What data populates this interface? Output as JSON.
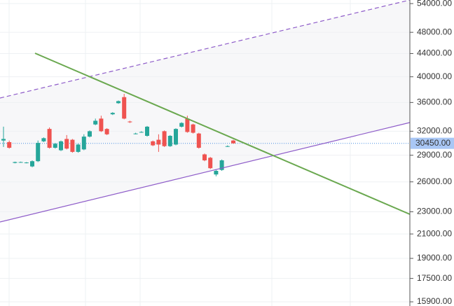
{
  "chart_data": {
    "type": "candlestick",
    "log_scale": true,
    "grid": true,
    "up_color": "#26a69a",
    "down_color": "#ef5350",
    "ylim": [
      15630,
      54800
    ],
    "yticks": [
      {
        "value": 54000,
        "label": "54000.00"
      },
      {
        "value": 48000,
        "label": "48000.00"
      },
      {
        "value": 44000,
        "label": "44000.00"
      },
      {
        "value": 40000,
        "label": "40000.00"
      },
      {
        "value": 36000,
        "label": "36000.00"
      },
      {
        "value": 32000,
        "label": "32000.00"
      },
      {
        "value": 29000,
        "label": "29000.00"
      },
      {
        "value": 26000,
        "label": "26000.00"
      },
      {
        "value": 23000,
        "label": "23000.00"
      },
      {
        "value": 21000,
        "label": "21000.00"
      },
      {
        "value": 19000,
        "label": "19000.00"
      },
      {
        "value": 17500,
        "label": "17500.00"
      },
      {
        "value": 15900,
        "label": "15900.00"
      }
    ],
    "current_price": {
      "value": 30450,
      "label": "30450.00"
    },
    "open": [
      30800,
      30600,
      28100,
      28200,
      28100,
      27700,
      28300,
      30700,
      32300,
      29900,
      29600,
      31000,
      30900,
      29400,
      29700,
      31300,
      32900,
      33700,
      32300,
      34300,
      35900,
      36800,
      33300,
      31700,
      31900,
      31400,
      30700,
      30900,
      32000,
      30100,
      30300,
      32600,
      33700,
      32900,
      31700,
      29100,
      28700,
      26800,
      27300,
      30100,
      30800
    ],
    "high": [
      32600,
      30800,
      28250,
      28250,
      28200,
      28400,
      30800,
      31200,
      32500,
      30500,
      30800,
      31500,
      31000,
      30400,
      31600,
      32100,
      33700,
      34100,
      32400,
      34600,
      36300,
      37300,
      33400,
      31800,
      32000,
      32700,
      30800,
      31600,
      32100,
      31500,
      32400,
      33200,
      34100,
      33000,
      31800,
      29200,
      28800,
      27300,
      28500,
      30200,
      30900
    ],
    "low": [
      30000,
      29800,
      28050,
      28150,
      28050,
      27600,
      28200,
      30600,
      29800,
      29800,
      29500,
      29700,
      29300,
      29300,
      29600,
      31200,
      32800,
      31900,
      31500,
      34200,
      35800,
      33600,
      33100,
      31600,
      31800,
      31300,
      30100,
      29400,
      30000,
      30000,
      30200,
      32500,
      31800,
      31700,
      29800,
      28300,
      27400,
      26600,
      27200,
      30000,
      30400
    ],
    "close": [
      31000,
      29900,
      28200,
      28200,
      28150,
      28300,
      30500,
      31100,
      29900,
      30400,
      30700,
      29800,
      29400,
      30300,
      31300,
      32000,
      33400,
      32000,
      31600,
      34500,
      36200,
      33700,
      33200,
      31700,
      31900,
      32600,
      30200,
      30300,
      30100,
      31400,
      32300,
      33100,
      31900,
      31800,
      29900,
      28400,
      27500,
      27200,
      28400,
      30100,
      30450
    ]
  }
}
